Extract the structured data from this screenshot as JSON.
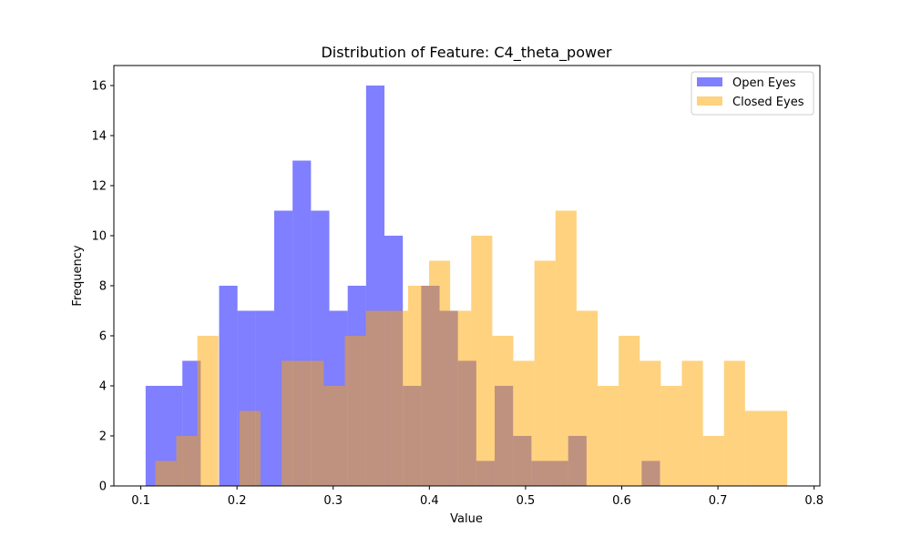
{
  "chart_data": {
    "type": "histogram",
    "title": "Distribution of Feature: C4_theta_power",
    "xlabel": "Value",
    "ylabel": "Frequency",
    "xlim": [
      0.072,
      0.806
    ],
    "ylim": [
      0,
      16.8
    ],
    "xticks": [
      "0.1",
      "0.2",
      "0.3",
      "0.4",
      "0.5",
      "0.6",
      "0.7",
      "0.8"
    ],
    "yticks": [
      "0",
      "2",
      "4",
      "6",
      "8",
      "10",
      "12",
      "14",
      "16"
    ],
    "grid": false,
    "legend_position": "top-right",
    "series": [
      {
        "name": "Open Eyes",
        "color": "#0000ff",
        "opacity": 0.5,
        "bin_start": 0.105,
        "bin_width": 0.0191,
        "counts": [
          4,
          4,
          5,
          0,
          8,
          7,
          7,
          11,
          13,
          11,
          7,
          8,
          16,
          10,
          4,
          8,
          7,
          5,
          1,
          4,
          2,
          1,
          1,
          2,
          0,
          0,
          0,
          1,
          0,
          0,
          0,
          0,
          0,
          0,
          0
        ]
      },
      {
        "name": "Closed Eyes",
        "color": "#ffa500",
        "opacity": 0.5,
        "bin_start": 0.115,
        "bin_width": 0.0219,
        "counts": [
          1,
          2,
          6,
          0,
          3,
          0,
          5,
          5,
          4,
          6,
          7,
          7,
          8,
          9,
          7,
          10,
          6,
          5,
          9,
          11,
          7,
          4,
          6,
          5,
          4,
          5,
          2,
          5,
          3,
          3
        ]
      }
    ]
  }
}
